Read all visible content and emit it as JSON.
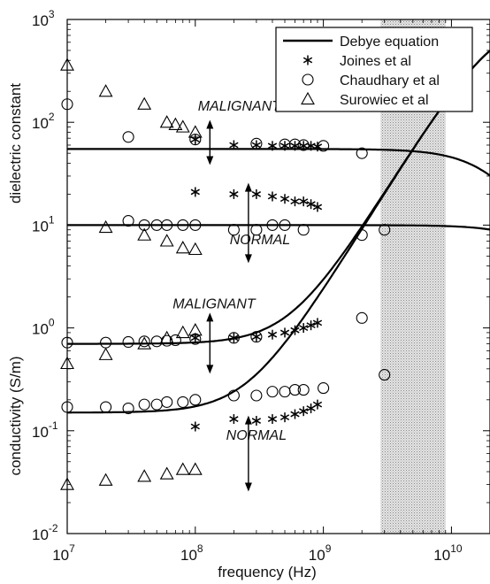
{
  "chart_data": {
    "type": "scatter",
    "title": "",
    "xlabel": "frequency (Hz)",
    "ylabel_upper": "dielectric constant",
    "ylabel_lower": "conductivity (S/m)",
    "x_scale": "log",
    "y_scale": "log",
    "xlim": [
      10000000.0,
      20000000000.0
    ],
    "ylim": [
      0.01,
      1000
    ],
    "x_ticks": [
      {
        "value": 10000000.0,
        "base": "10",
        "exp": "7"
      },
      {
        "value": 100000000.0,
        "base": "10",
        "exp": "8"
      },
      {
        "value": 1000000000.0,
        "base": "10",
        "exp": "9"
      },
      {
        "value": 10000000000.0,
        "base": "10",
        "exp": "10"
      }
    ],
    "y_ticks": [
      {
        "value": 0.01,
        "base": "10",
        "exp": "-2"
      },
      {
        "value": 0.1,
        "base": "10",
        "exp": "-1"
      },
      {
        "value": 1,
        "base": "10",
        "exp": "0"
      },
      {
        "value": 10,
        "base": "10",
        "exp": "1"
      },
      {
        "value": 100,
        "base": "10",
        "exp": "2"
      },
      {
        "value": 1000,
        "base": "10",
        "exp": "3"
      }
    ],
    "shaded_region": {
      "x": [
        2800000000.0,
        9000000000.0
      ]
    },
    "legend": {
      "placement": "top-right",
      "entries": [
        {
          "label": "Debye equation",
          "marker": "line"
        },
        {
          "label": "Joines et al",
          "marker": "asterisk"
        },
        {
          "label": "Chaudhary et al",
          "marker": "circle"
        },
        {
          "label": "Surowiec et al",
          "marker": "triangle"
        }
      ]
    },
    "annotations": [
      {
        "text": "MALIGNANT",
        "x": 220000000.0,
        "y": 130,
        "arrow_x": 130000000.0,
        "arrow_y": [
          90,
          45
        ]
      },
      {
        "text": "NORMAL",
        "x": 320000000.0,
        "y": 6.5,
        "arrow_x": 260000000.0,
        "arrow_y": [
          22,
          5
        ]
      },
      {
        "text": "MALIGNANT",
        "x": 140000000.0,
        "y": 1.55,
        "arrow_x": 130000000.0,
        "arrow_y": [
          1.2,
          0.42
        ]
      },
      {
        "text": "NORMAL",
        "x": 300000000.0,
        "y": 0.082,
        "arrow_x": 260000000.0,
        "arrow_y": [
          0.12,
          0.03
        ]
      }
    ],
    "series": [
      {
        "name": "Debye equation",
        "kind": "debye",
        "eps_inf": 0.5,
        "eps_s": 55,
        "fc": 22000000000.0,
        "desc": "malignant dielectric constant"
      },
      {
        "name": "Debye equation",
        "kind": "debye",
        "eps_inf": 0.5,
        "eps_s": 10,
        "fc": 60000000000.0,
        "desc": "normal dielectric constant"
      },
      {
        "name": "Debye equation",
        "kind": "debye",
        "sig_s": 0.7,
        "sig_inf": 1100,
        "fc": 22000000000.0,
        "desc": "malignant conductivity"
      },
      {
        "name": "Debye equation",
        "kind": "debye",
        "sig_s": 0.15,
        "sig_inf": 1100,
        "fc": 22000000000.0,
        "desc": "normal conductivity"
      },
      {
        "name": "Joines et al",
        "marker": "asterisk",
        "points": [
          [
            100000000.0,
            68
          ],
          [
            200000000.0,
            60
          ],
          [
            300000000.0,
            60
          ],
          [
            400000000.0,
            59
          ],
          [
            500000000.0,
            59
          ],
          [
            600000000.0,
            59
          ],
          [
            700000000.0,
            59
          ],
          [
            800000000.0,
            59
          ],
          [
            900000000.0,
            58
          ],
          [
            100000000.0,
            21
          ],
          [
            200000000.0,
            20
          ],
          [
            300000000.0,
            20
          ],
          [
            400000000.0,
            19
          ],
          [
            500000000.0,
            18
          ],
          [
            600000000.0,
            17
          ],
          [
            700000000.0,
            17
          ],
          [
            800000000.0,
            16
          ],
          [
            900000000.0,
            15
          ],
          [
            100000000.0,
            0.8
          ],
          [
            200000000.0,
            0.8
          ],
          [
            300000000.0,
            0.82
          ],
          [
            400000000.0,
            0.86
          ],
          [
            500000000.0,
            0.9
          ],
          [
            600000000.0,
            0.95
          ],
          [
            700000000.0,
            1.0
          ],
          [
            800000000.0,
            1.06
          ],
          [
            900000000.0,
            1.12
          ],
          [
            100000000.0,
            0.11
          ],
          [
            200000000.0,
            0.13
          ],
          [
            300000000.0,
            0.125
          ],
          [
            400000000.0,
            0.13
          ],
          [
            500000000.0,
            0.135
          ],
          [
            600000000.0,
            0.145
          ],
          [
            700000000.0,
            0.155
          ],
          [
            800000000.0,
            0.165
          ],
          [
            900000000.0,
            0.18
          ]
        ]
      },
      {
        "name": "Chaudhary et al",
        "marker": "circle",
        "points": [
          [
            10000000.0,
            150
          ],
          [
            30000000.0,
            72
          ],
          [
            100000000.0,
            68
          ],
          [
            300000000.0,
            62
          ],
          [
            500000000.0,
            61
          ],
          [
            600000000.0,
            61
          ],
          [
            700000000.0,
            60
          ],
          [
            1000000000.0,
            59
          ],
          [
            2000000000.0,
            50
          ],
          [
            30000000.0,
            11
          ],
          [
            40000000.0,
            10
          ],
          [
            50000000.0,
            10
          ],
          [
            60000000.0,
            10
          ],
          [
            80000000.0,
            10
          ],
          [
            100000000.0,
            10
          ],
          [
            200000000.0,
            9
          ],
          [
            300000000.0,
            9
          ],
          [
            400000000.0,
            10
          ],
          [
            500000000.0,
            10
          ],
          [
            700000000.0,
            9
          ],
          [
            2000000000.0,
            8
          ],
          [
            3000000000.0,
            9
          ],
          [
            10000000.0,
            0.72
          ],
          [
            20000000.0,
            0.72
          ],
          [
            30000000.0,
            0.73
          ],
          [
            40000000.0,
            0.74
          ],
          [
            50000000.0,
            0.74
          ],
          [
            60000000.0,
            0.75
          ],
          [
            70000000.0,
            0.76
          ],
          [
            100000000.0,
            0.78
          ],
          [
            200000000.0,
            0.8
          ],
          [
            300000000.0,
            0.82
          ],
          [
            2000000000.0,
            1.25
          ],
          [
            10000000.0,
            0.17
          ],
          [
            20000000.0,
            0.17
          ],
          [
            30000000.0,
            0.165
          ],
          [
            40000000.0,
            0.18
          ],
          [
            50000000.0,
            0.18
          ],
          [
            60000000.0,
            0.19
          ],
          [
            80000000.0,
            0.19
          ],
          [
            100000000.0,
            0.2
          ],
          [
            200000000.0,
            0.22
          ],
          [
            300000000.0,
            0.22
          ],
          [
            400000000.0,
            0.24
          ],
          [
            500000000.0,
            0.24
          ],
          [
            600000000.0,
            0.25
          ],
          [
            700000000.0,
            0.25
          ],
          [
            1000000000.0,
            0.26
          ],
          [
            3000000000.0,
            0.35
          ]
        ]
      },
      {
        "name": "Surowiec et al",
        "marker": "triangle",
        "points": [
          [
            10000000.0,
            360
          ],
          [
            20000000.0,
            200
          ],
          [
            40000000.0,
            150
          ],
          [
            60000000.0,
            100
          ],
          [
            70000000.0,
            95
          ],
          [
            80000000.0,
            90
          ],
          [
            100000000.0,
            80
          ],
          [
            20000000.0,
            9.5
          ],
          [
            40000000.0,
            8
          ],
          [
            60000000.0,
            7
          ],
          [
            80000000.0,
            6
          ],
          [
            100000000.0,
            5.8
          ],
          [
            10000000.0,
            0.45
          ],
          [
            20000000.0,
            0.55
          ],
          [
            40000000.0,
            0.7
          ],
          [
            60000000.0,
            0.8
          ],
          [
            80000000.0,
            0.9
          ],
          [
            100000000.0,
            0.95
          ],
          [
            10000000.0,
            0.03
          ],
          [
            20000000.0,
            0.033
          ],
          [
            40000000.0,
            0.036
          ],
          [
            60000000.0,
            0.038
          ],
          [
            80000000.0,
            0.042
          ],
          [
            100000000.0,
            0.042
          ]
        ]
      }
    ]
  }
}
